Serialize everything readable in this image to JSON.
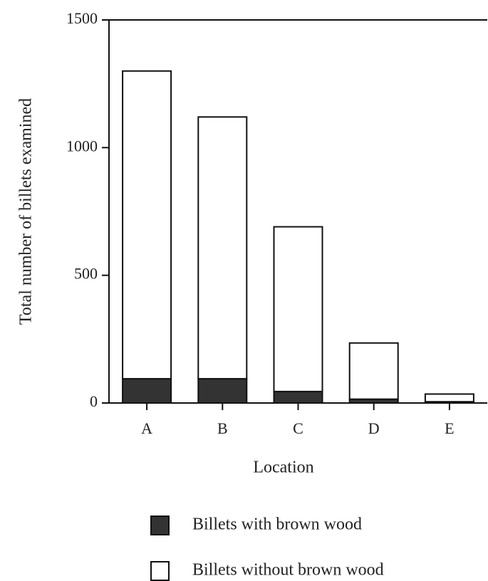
{
  "chart_data": {
    "type": "stacked_bar",
    "x_label": "Location",
    "y_label": "Total number of billets examined",
    "categories": [
      "A",
      "B",
      "C",
      "D",
      "E"
    ],
    "series": [
      {
        "name": "Billets with brown wood",
        "color": "#333333",
        "values": [
          95,
          95,
          45,
          15,
          5
        ]
      },
      {
        "name": "Billets without brown wood",
        "color": "#ffffff",
        "values": [
          1205,
          1025,
          645,
          220,
          30
        ]
      }
    ],
    "ylim": [
      0,
      1500
    ],
    "yticks": [
      0,
      500,
      1000,
      1500
    ],
    "grid": false
  }
}
